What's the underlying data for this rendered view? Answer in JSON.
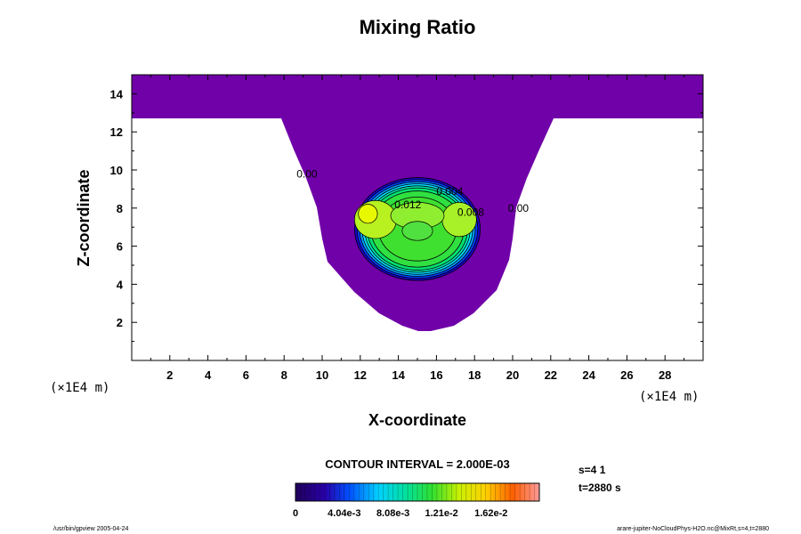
{
  "chart_data": {
    "type": "contour",
    "title": "Mixing Ratio",
    "xlabel": "X-coordinate",
    "ylabel": "Z-coordinate",
    "x_unit": "(×1E4 m)",
    "z_unit": "(×1E4 m)",
    "xlim": [
      0,
      30
    ],
    "ylim": [
      0,
      15
    ],
    "xticks": [
      "2",
      "4",
      "6",
      "8",
      "10",
      "12",
      "14",
      "16",
      "18",
      "20",
      "22",
      "24",
      "26",
      "28"
    ],
    "yticks": [
      "2",
      "4",
      "6",
      "8",
      "10",
      "12",
      "14"
    ],
    "contour_labels": [
      {
        "text": "0.00",
        "x": 9.2,
        "z": 9.6
      },
      {
        "text": "0.004",
        "x": 16.7,
        "z": 8.7
      },
      {
        "text": "0.012",
        "x": 14.5,
        "z": 8.0
      },
      {
        "text": "0.008",
        "x": 17.8,
        "z": 7.6
      },
      {
        "text": "0.00",
        "x": 20.3,
        "z": 7.8
      }
    ],
    "background_top": 12.5,
    "plume": {
      "center_x": 15.0,
      "center_z": 6.9,
      "radius_x": 3.3,
      "radius_z": 2.7,
      "max_value": 0.0135
    },
    "contour_interval": "CONTOUR INTERVAL = 2.000E-03",
    "colorbar": {
      "range": [
        0,
        0.0202
      ],
      "tick_labels": [
        "0",
        "4.04e-3",
        "8.08e-3",
        "1.21e-2",
        "1.62e-2"
      ],
      "tick_values": [
        0,
        0.00404,
        0.00808,
        0.0121,
        0.0162
      ]
    },
    "status": [
      "s=4 1",
      "t=2880 s"
    ],
    "footer_left": "/usr/bin/gpview 2005-04-24",
    "footer_right": "arare-jupiter-NoCloudPhys-H2O.nc@MixRt,s=4,t=2880"
  }
}
